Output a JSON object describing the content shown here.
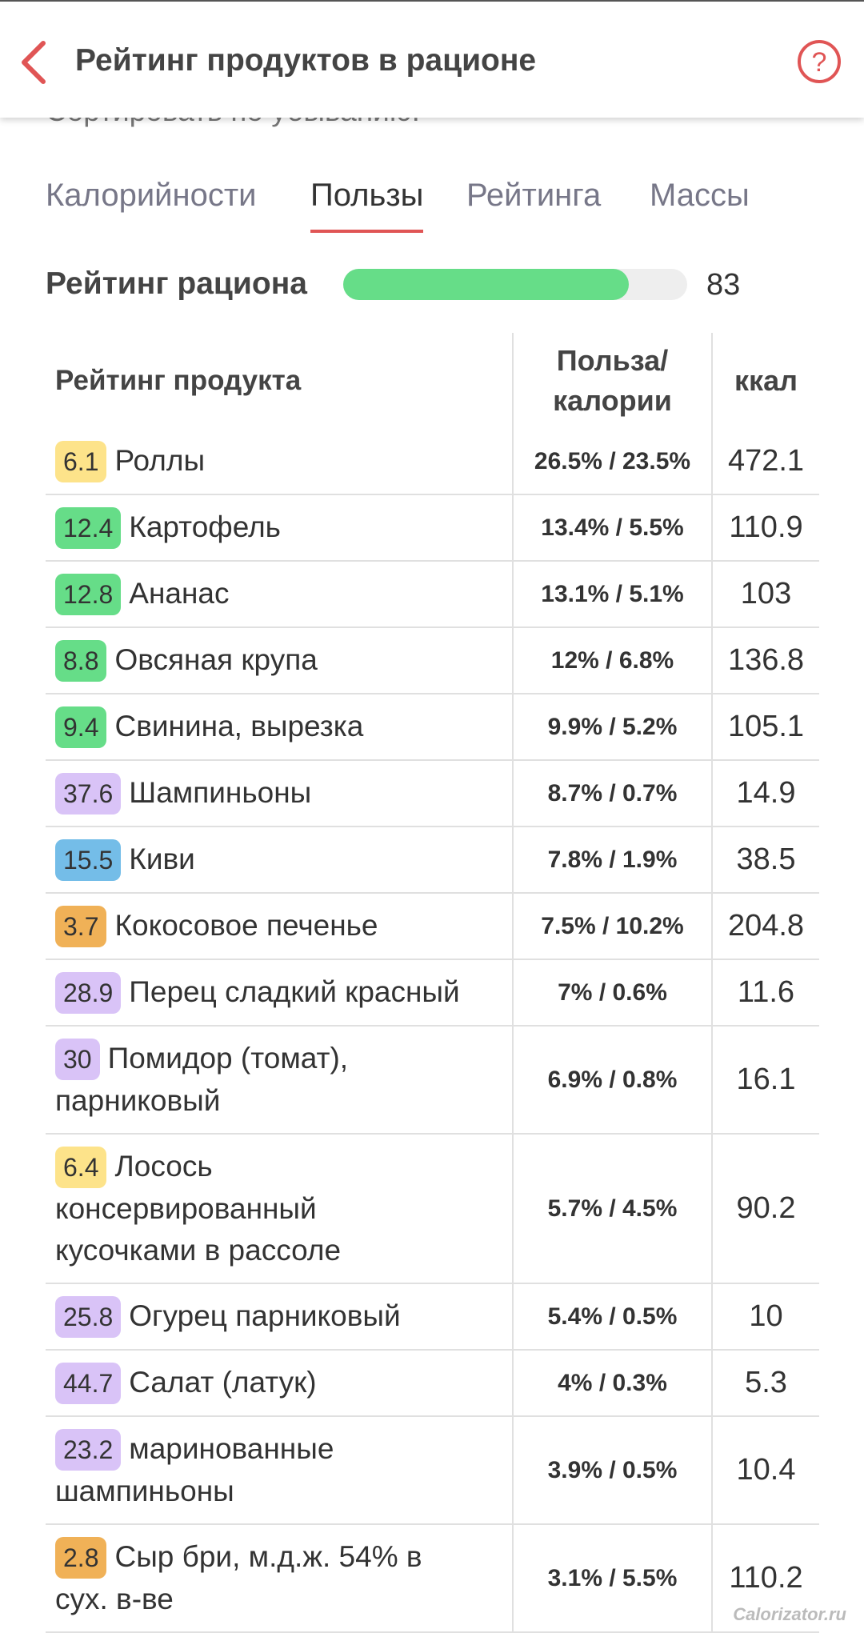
{
  "header": {
    "title": "Рейтинг продуктов в рационе"
  },
  "sort_label": "Сортировать по убыванию:",
  "tabs": {
    "items": [
      "Калорийности",
      "Пользы",
      "Рейтинга",
      "Массы"
    ],
    "active": 1
  },
  "rating": {
    "label": "Рейтинг рациона",
    "value": 83,
    "color": "#66dd88"
  },
  "table": {
    "columns": [
      "Рейтинг продукта",
      "Польза/ калории",
      "ккал"
    ],
    "rows": [
      {
        "score": "6.1",
        "color": "#fde38a",
        "name": "Роллы",
        "ratio": "26.5% / 23.5%",
        "kcal": 472.1
      },
      {
        "score": "12.4",
        "color": "#66dd88",
        "name": "Картофель",
        "ratio": "13.4% / 5.5%",
        "kcal": 110.9
      },
      {
        "score": "12.8",
        "color": "#66dd88",
        "name": "Ананас",
        "ratio": "13.1% / 5.1%",
        "kcal": 103
      },
      {
        "score": "8.8",
        "color": "#66dd88",
        "name": "Овсяная крупа",
        "ratio": "12% / 6.8%",
        "kcal": 136.8
      },
      {
        "score": "9.4",
        "color": "#66dd88",
        "name": "Свинина, вырезка",
        "ratio": "9.9% / 5.2%",
        "kcal": 105.1
      },
      {
        "score": "37.6",
        "color": "#d9c3f7",
        "name": "Шампиньоны",
        "ratio": "8.7% / 0.7%",
        "kcal": 14.9
      },
      {
        "score": "15.5",
        "color": "#74bde8",
        "name": "Киви",
        "ratio": "7.8% / 1.9%",
        "kcal": 38.5
      },
      {
        "score": "3.7",
        "color": "#f0b157",
        "name": "Кокосовое печенье",
        "ratio": "7.5% / 10.2%",
        "kcal": 204.8
      },
      {
        "score": "28.9",
        "color": "#d9c3f7",
        "name": "Перец сладкий красный",
        "ratio": "7% / 0.6%",
        "kcal": 11.6
      },
      {
        "score": "30",
        "color": "#d9c3f7",
        "name": "Помидор (томат), парниковый",
        "ratio": "6.9% / 0.8%",
        "kcal": 16.1
      },
      {
        "score": "6.4",
        "color": "#fde38a",
        "name": "Лосось консервированный кусочками в рассоле",
        "ratio": "5.7% / 4.5%",
        "kcal": 90.2
      },
      {
        "score": "25.8",
        "color": "#d9c3f7",
        "name": "Огурец парниковый",
        "ratio": "5.4% / 0.5%",
        "kcal": 10
      },
      {
        "score": "44.7",
        "color": "#d9c3f7",
        "name": "Салат (латук)",
        "ratio": "4% / 0.3%",
        "kcal": 5.3
      },
      {
        "score": "23.2",
        "color": "#d9c3f7",
        "name": "маринованные шампиньоны",
        "ratio": "3.9% / 0.5%",
        "kcal": 10.4
      },
      {
        "score": "2.8",
        "color": "#f0b157",
        "name": "Сыр бри, м.д.ж. 54% в сух. в-ве",
        "ratio": "3.1% / 5.5%",
        "kcal": 110.2
      }
    ]
  },
  "watermark": "Calorizator.ru"
}
